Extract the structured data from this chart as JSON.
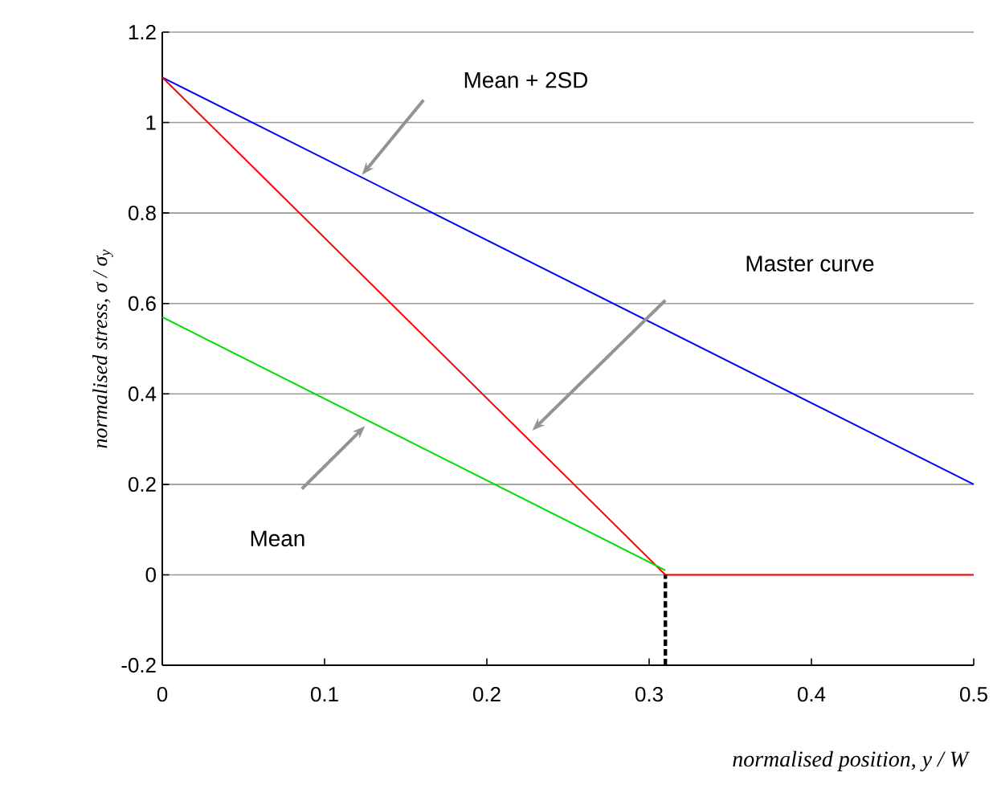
{
  "chart_data": {
    "type": "line",
    "xlabel": "normalised position,  y / W",
    "ylabel": "normalised stress,  σ / σ$_{y}$",
    "xlim": [
      0,
      0.5
    ],
    "xticks": [
      0,
      0.1,
      0.2,
      0.3,
      0.4,
      0.5
    ],
    "ylim": [
      -0.2,
      1.2
    ],
    "yticks": [
      -0.2,
      0,
      0.2,
      0.4,
      0.6,
      0.8,
      1,
      1.2
    ],
    "grid": "y",
    "marker": "none",
    "series": [
      {
        "color": "#0000ff",
        "x": [
          0,
          0.5
        ],
        "values": [
          1.1,
          0.2
        ]
      },
      {
        "color": "#ff0000",
        "x": [
          0,
          0.31,
          0.5
        ],
        "values": [
          1.1,
          0,
          0
        ]
      },
      {
        "color": "#00dd00",
        "x": [
          0,
          0.31
        ],
        "values": [
          0.57,
          0.01
        ]
      },
      {
        "color": "#000000",
        "x": [
          0.31,
          0.31
        ],
        "values": [
          -0.2,
          0
        ],
        "line_style": "dashed"
      }
    ],
    "annotations": [
      "Mean + 2SD",
      "Master curve",
      "Mean"
    ]
  }
}
